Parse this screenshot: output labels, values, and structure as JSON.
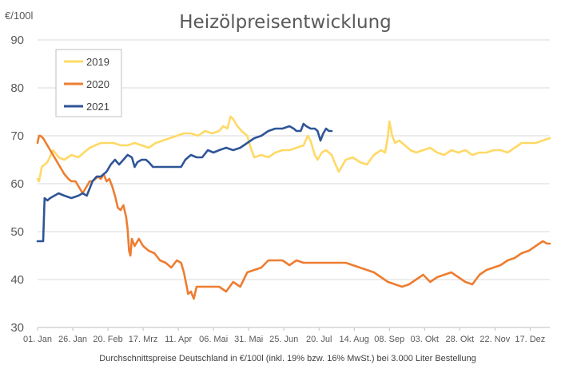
{
  "chart_data": {
    "type": "line",
    "title": "Heizölpreisentwicklung",
    "ylabel": "€/100l",
    "caption": "Durchschnittspreise Deutschland in €/100l (inkl. 19% bzw. 16%  MwSt.) bei 3.000 Liter Bestellung",
    "ylim": [
      30,
      90
    ],
    "yticks": [
      30,
      40,
      50,
      60,
      70,
      80,
      90
    ],
    "xlim": [
      1,
      365
    ],
    "x_unit": "day of year",
    "xticks": [
      {
        "label": "01. Jan",
        "day": 1
      },
      {
        "label": "26. Jan",
        "day": 26
      },
      {
        "label": "20. Feb",
        "day": 51
      },
      {
        "label": "17. Mrz",
        "day": 76
      },
      {
        "label": "11. Apr",
        "day": 101
      },
      {
        "label": "06. Mai",
        "day": 126
      },
      {
        "label": "31. Mai",
        "day": 151
      },
      {
        "label": "25. Jun",
        "day": 176
      },
      {
        "label": "20. Jul",
        "day": 201
      },
      {
        "label": "14. Aug",
        "day": 226
      },
      {
        "label": "08. Sep",
        "day": 251
      },
      {
        "label": "03. Okt",
        "day": 276
      },
      {
        "label": "28. Okt",
        "day": 301
      },
      {
        "label": "22. Nov",
        "day": 326
      },
      {
        "label": "17. Dez",
        "day": 351
      }
    ],
    "grid": "horizontal",
    "legend_position": "top-left",
    "series": [
      {
        "name": "2019",
        "color": "#FFD966",
        "x": [
          1,
          2,
          4,
          8,
          12,
          16,
          20,
          25,
          30,
          34,
          38,
          42,
          46,
          50,
          55,
          60,
          65,
          70,
          75,
          80,
          85,
          90,
          95,
          100,
          105,
          110,
          115,
          120,
          125,
          130,
          133,
          136,
          138,
          140,
          143,
          146,
          150,
          153,
          155,
          160,
          165,
          170,
          175,
          180,
          185,
          190,
          193,
          195,
          198,
          200,
          203,
          206,
          210,
          212,
          215,
          218,
          220,
          225,
          230,
          235,
          240,
          245,
          248,
          250,
          251,
          253,
          255,
          258,
          262,
          266,
          270,
          275,
          280,
          285,
          290,
          295,
          300,
          305,
          310,
          315,
          320,
          325,
          330,
          335,
          340,
          345,
          350,
          355,
          360,
          365
        ],
        "y": [
          61,
          60.5,
          63.5,
          64.5,
          67,
          65.5,
          65,
          66,
          65.5,
          66.5,
          67.5,
          68,
          68.5,
          68.5,
          68.5,
          68,
          68,
          68.5,
          68,
          67.5,
          68.5,
          69,
          69.5,
          70,
          70.5,
          70.5,
          70,
          71,
          70.5,
          71,
          72,
          71.5,
          74,
          73.5,
          72,
          71,
          70,
          67,
          65.5,
          66,
          65.5,
          66.5,
          67,
          67,
          67.5,
          68,
          70,
          69,
          66,
          65,
          66.5,
          67,
          66,
          64.5,
          62.5,
          64,
          65,
          65.5,
          64.5,
          64,
          66,
          67,
          66.5,
          70,
          73,
          70,
          68.5,
          69,
          68,
          67,
          66.5,
          67,
          67.5,
          66.5,
          66,
          67,
          66.5,
          67,
          66,
          66.5,
          66.5,
          67,
          67,
          66.5,
          67.5,
          68.5,
          68.5,
          68.5,
          69,
          69.5
        ]
      },
      {
        "name": "2020",
        "color": "#ED7D31",
        "x": [
          1,
          2,
          3,
          5,
          8,
          11,
          14,
          17,
          20,
          23,
          25,
          28,
          30,
          33,
          35,
          38,
          40,
          42,
          44,
          46,
          48,
          50,
          52,
          54,
          56,
          58,
          60,
          62,
          64,
          65,
          66,
          67,
          68,
          70,
          73,
          76,
          80,
          84,
          88,
          92,
          96,
          100,
          103,
          105,
          107,
          108,
          110,
          112,
          114,
          116,
          118,
          120,
          125,
          130,
          135,
          140,
          145,
          150,
          155,
          160,
          165,
          170,
          175,
          180,
          185,
          190,
          195,
          200,
          210,
          220,
          230,
          240,
          245,
          250,
          255,
          260,
          265,
          270,
          275,
          280,
          285,
          290,
          295,
          300,
          305,
          310,
          315,
          320,
          325,
          330,
          335,
          340,
          345,
          350,
          355,
          360,
          363,
          365
        ],
        "y": [
          68.5,
          70,
          70,
          69.5,
          68,
          66.5,
          65,
          63.5,
          62,
          61,
          60.5,
          60.5,
          59.5,
          58,
          59,
          60.5,
          60.5,
          61,
          61.5,
          61,
          62,
          60.5,
          61,
          59.5,
          57.5,
          55,
          54.5,
          55.5,
          53,
          50.5,
          46,
          45,
          48.5,
          47,
          48.5,
          47,
          46,
          45.5,
          44,
          43.5,
          42.5,
          44,
          43.5,
          41.5,
          38.5,
          37,
          37.5,
          36,
          38.5,
          38.5,
          38.5,
          38.5,
          38.5,
          38.5,
          37.5,
          39.5,
          38.5,
          41.5,
          42,
          42.5,
          44,
          44,
          44,
          43,
          44,
          43.5,
          43.5,
          43.5,
          43.5,
          43.5,
          42.5,
          41.5,
          40.5,
          39.5,
          39,
          38.5,
          39,
          40,
          41,
          39.5,
          40.5,
          41,
          41.5,
          40.5,
          39.5,
          39,
          41,
          42,
          42.5,
          43,
          44,
          44.5,
          45.5,
          46,
          47,
          48,
          47.5,
          47.5
        ]
      },
      {
        "name": "2021",
        "color": "#2F5597",
        "x": [
          1,
          3,
          5,
          6,
          8,
          10,
          13,
          16,
          20,
          25,
          30,
          33,
          36,
          38,
          40,
          43,
          46,
          50,
          53,
          56,
          59,
          62,
          65,
          68,
          70,
          72,
          75,
          78,
          80,
          83,
          86,
          90,
          95,
          100,
          103,
          106,
          110,
          114,
          118,
          122,
          126,
          130,
          135,
          140,
          145,
          150,
          155,
          160,
          165,
          170,
          175,
          180,
          183,
          185,
          188,
          190,
          192,
          195,
          198,
          200,
          202,
          204,
          206,
          208,
          210
        ],
        "y": [
          48,
          48,
          48,
          57,
          56.5,
          57,
          57.5,
          58,
          57.5,
          57,
          57.5,
          58,
          57.5,
          59,
          60.5,
          61.5,
          61.5,
          62.5,
          64,
          65,
          64,
          65,
          66,
          65.5,
          63.5,
          64.5,
          65,
          65,
          64.5,
          63.5,
          63.5,
          63.5,
          63.5,
          63.5,
          63.5,
          65,
          66,
          65.5,
          65.5,
          67,
          66.5,
          67,
          67.5,
          67,
          67.5,
          68.5,
          69.5,
          70,
          71,
          71.5,
          71.5,
          72,
          71.5,
          71,
          71,
          72.5,
          72,
          71.5,
          71.5,
          71,
          69,
          70.5,
          71.5,
          71,
          71
        ]
      }
    ]
  }
}
